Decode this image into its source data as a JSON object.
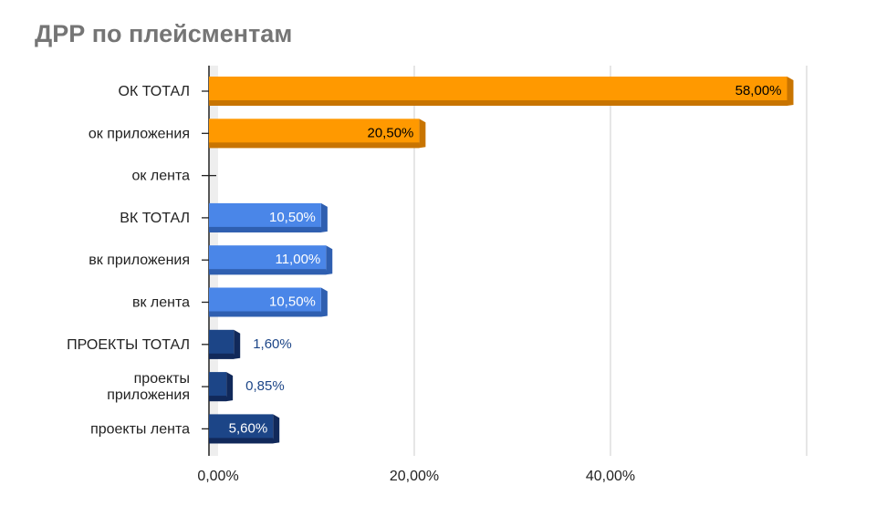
{
  "chart_data": {
    "type": "bar",
    "orientation": "horizontal",
    "style": "3d",
    "title": "ДРР по плейсментам",
    "xlabel": "",
    "ylabel": "",
    "xlim": [
      0,
      60
    ],
    "x_ticks": [
      {
        "value": 0,
        "label": "0,00%"
      },
      {
        "value": 20,
        "label": "20,00%"
      },
      {
        "value": 40,
        "label": "40,00%"
      }
    ],
    "grid": true,
    "legend": "none",
    "categories": [
      {
        "label": [
          "ОК ТОТАЛ"
        ],
        "value": 58.0,
        "data_label": "58,00%",
        "color": "#FF9900",
        "shade": "#C87400",
        "label_pos": "inside",
        "label_color": "#000000"
      },
      {
        "label": [
          "ок приложения"
        ],
        "value": 20.5,
        "data_label": "20,50%",
        "color": "#FF9900",
        "shade": "#C87400",
        "label_pos": "inside",
        "label_color": "#000000"
      },
      {
        "label": [
          "ок лента"
        ],
        "value": 0,
        "data_label": "",
        "color": "#FF9900",
        "shade": "#C87400",
        "label_pos": "none",
        "label_color": "#000000"
      },
      {
        "label": [
          "ВК ТОТАЛ"
        ],
        "value": 10.5,
        "data_label": "10,50%",
        "color": "#4A86E8",
        "shade": "#2F5FB0",
        "label_pos": "inside",
        "label_color": "#ffffff"
      },
      {
        "label": [
          "вк приложения"
        ],
        "value": 11.0,
        "data_label": "11,00%",
        "color": "#4A86E8",
        "shade": "#2F5FB0",
        "label_pos": "inside",
        "label_color": "#ffffff"
      },
      {
        "label": [
          "вк лента"
        ],
        "value": 10.5,
        "data_label": "10,50%",
        "color": "#4A86E8",
        "shade": "#2F5FB0",
        "label_pos": "inside",
        "label_color": "#ffffff"
      },
      {
        "label": [
          "ПРОЕКТЫ ТОТАЛ"
        ],
        "value": 1.6,
        "data_label": "1,60%",
        "color": "#1C4587",
        "shade": "#11295A",
        "label_pos": "outside",
        "label_color": "#1C4587"
      },
      {
        "label": [
          "проекты",
          "приложения"
        ],
        "value": 0.85,
        "data_label": "0,85%",
        "color": "#1C4587",
        "shade": "#11295A",
        "label_pos": "outside",
        "label_color": "#1C4587"
      },
      {
        "label": [
          "проекты лента"
        ],
        "value": 5.6,
        "data_label": "5,60%",
        "color": "#1C4587",
        "shade": "#11295A",
        "label_pos": "inside",
        "label_color": "#ffffff"
      }
    ]
  }
}
